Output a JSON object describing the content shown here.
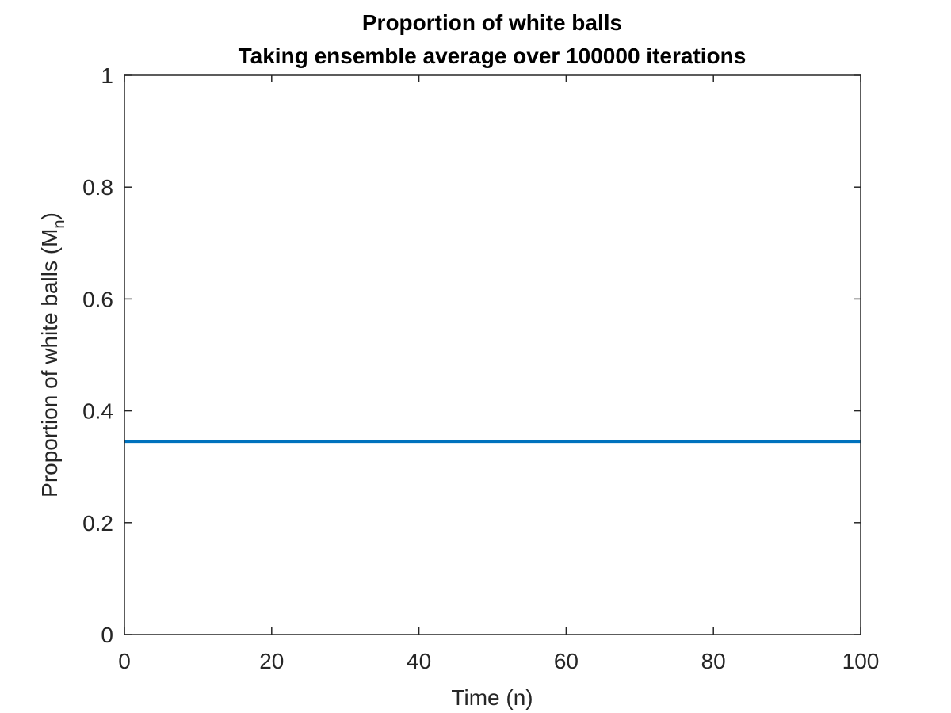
{
  "chart_data": {
    "type": "line",
    "title": "Proportion of white balls",
    "subtitle": "Taking ensemble average over 100000 iterations",
    "xlabel": "Time (n)",
    "ylabel_main": "Proportion of white balls (M",
    "ylabel_sub": "n",
    "ylabel_close": ")",
    "xlim": [
      0,
      100
    ],
    "ylim": [
      0,
      1
    ],
    "xticks": [
      0,
      20,
      40,
      60,
      80,
      100
    ],
    "yticks": [
      0,
      0.2,
      0.4,
      0.6,
      0.8,
      1
    ],
    "xtick_labels": [
      "0",
      "20",
      "40",
      "60",
      "80",
      "100"
    ],
    "ytick_labels": [
      "0",
      "0.2",
      "0.4",
      "0.6",
      "0.8",
      "1"
    ],
    "grid": false,
    "series": [
      {
        "x": [
          0,
          100
        ],
        "values": [
          0.345,
          0.345
        ],
        "color": "#0072BD"
      }
    ]
  }
}
